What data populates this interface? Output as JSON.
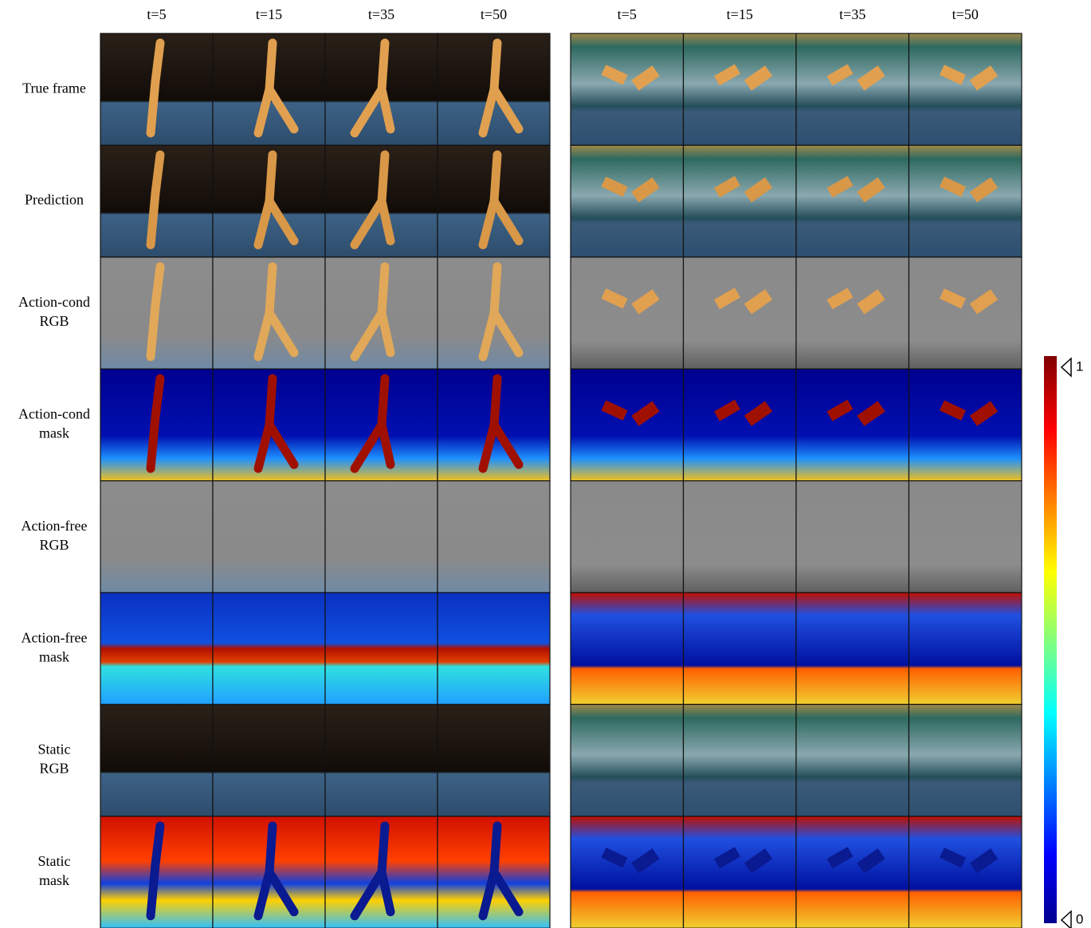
{
  "columns_left": [
    "t=5",
    "t=15",
    "t=35",
    "t=50"
  ],
  "columns_right": [
    "t=5",
    "t=15",
    "t=35",
    "t=50"
  ],
  "rows": [
    {
      "lines": [
        "True frame"
      ]
    },
    {
      "lines": [
        "Prediction"
      ]
    },
    {
      "lines": [
        "Action-cond",
        "RGB"
      ]
    },
    {
      "lines": [
        "Action-cond",
        "mask"
      ]
    },
    {
      "lines": [
        "Action-free",
        "RGB"
      ]
    },
    {
      "lines": [
        "Action-free",
        "mask"
      ]
    },
    {
      "lines": [
        "Static",
        "RGB"
      ]
    },
    {
      "lines": [
        "Static",
        "mask"
      ]
    }
  ],
  "colorbar": {
    "max": "1",
    "min": "0"
  }
}
